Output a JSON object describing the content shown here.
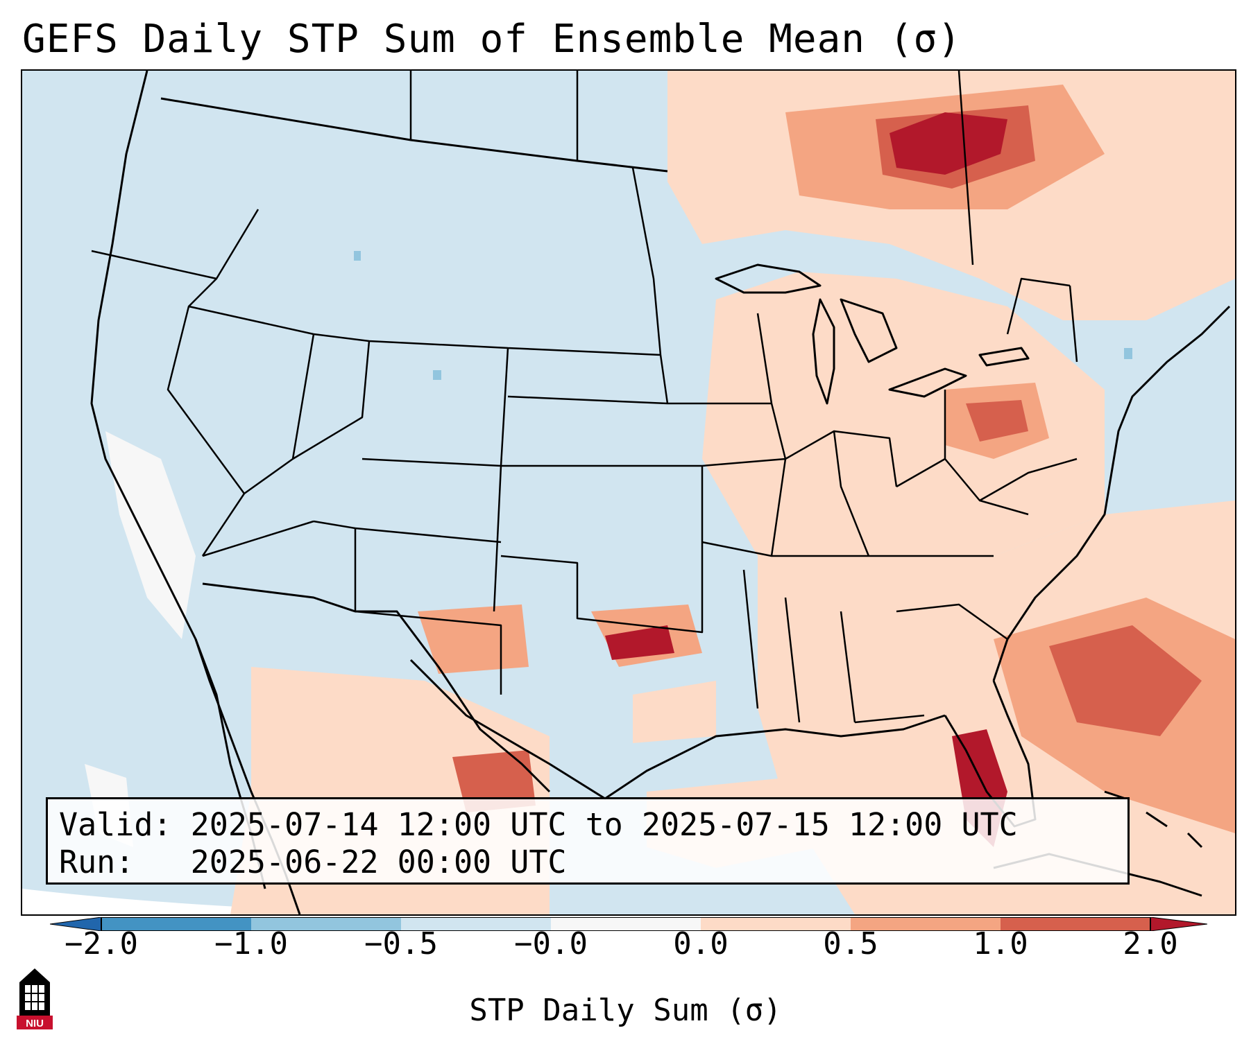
{
  "title": "GEFS Daily STP Sum of Ensemble Mean (σ)",
  "info": {
    "valid_label": "Valid:",
    "valid_value": "2025-07-14 12:00 UTC to 2025-07-15 12:00 UTC",
    "run_label": "Run:",
    "run_value": "2025-06-22 00:00 UTC"
  },
  "colorbar": {
    "label": "STP Daily Sum (σ)",
    "ticks": [
      "−2.0",
      "−1.0",
      "−0.5",
      "−0.0",
      "0.0",
      "0.5",
      "1.0",
      "2.0"
    ],
    "bins": [
      {
        "from": -2.0,
        "to": -1.0,
        "color": "#4393c3"
      },
      {
        "from": -1.0,
        "to": -0.5,
        "color": "#92c5de"
      },
      {
        "from": -0.5,
        "to": -0.0,
        "color": "#d1e5f0"
      },
      {
        "from": -0.0,
        "to": 0.0,
        "color": "#f7f7f7"
      },
      {
        "from": 0.0,
        "to": 0.5,
        "color": "#fddbc7"
      },
      {
        "from": 0.5,
        "to": 1.0,
        "color": "#f4a582"
      },
      {
        "from": 1.0,
        "to": 2.0,
        "color": "#d6604d"
      }
    ],
    "under_color": "#2166ac",
    "over_color": "#b2182b"
  },
  "map": {
    "region": "Contiguous United States, northern Mexico, southern Canada, Gulf of Mexico and Caribbean",
    "background_color": "#d1e5f0",
    "boundary_color": "#000000"
  },
  "logo": {
    "text": "NIU",
    "color": "#c8102e"
  }
}
